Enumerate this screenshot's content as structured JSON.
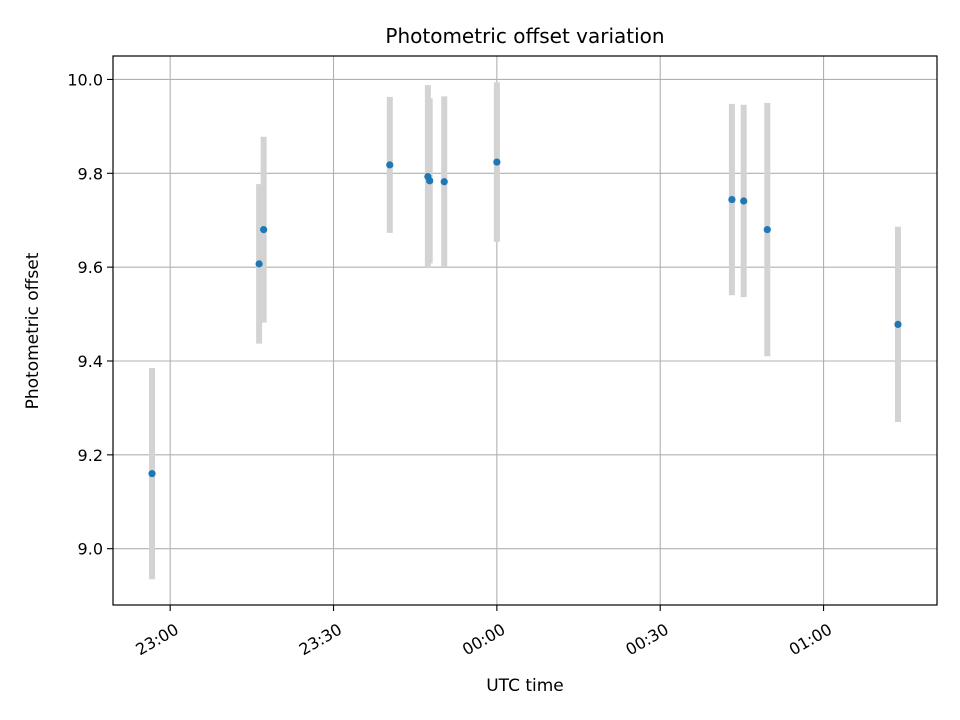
{
  "chart_data": {
    "type": "scatter",
    "title": "Photometric offset variation",
    "xlabel": "UTC time",
    "ylabel": "Photometric offset",
    "x_tick_labels": [
      "23:00",
      "23:30",
      "00:00",
      "00:30",
      "01:00"
    ],
    "x_tick_times": [
      "23:00",
      "23:30",
      "00:00",
      "00:30",
      "01:00"
    ],
    "y_tick_labels": [
      "9.0",
      "9.2",
      "9.4",
      "9.6",
      "9.8",
      "10.0"
    ],
    "xlim": [
      "22:49:30",
      "01:20:50"
    ],
    "ylim": [
      8.88,
      10.05
    ],
    "grid": true,
    "marker_color": "#1f77b4",
    "errorbar_color": "#d3d3d3",
    "points": [
      {
        "x": "22:56:40",
        "y": 9.16,
        "yerr": 0.225
      },
      {
        "x": "23:16:20",
        "y": 9.607,
        "yerr": 0.17
      },
      {
        "x": "23:17:10",
        "y": 9.68,
        "yerr": 0.198
      },
      {
        "x": "23:40:20",
        "y": 9.818,
        "yerr": 0.145
      },
      {
        "x": "23:47:20",
        "y": 9.793,
        "yerr": 0.195
      },
      {
        "x": "23:47:40",
        "y": 9.784,
        "yerr": 0.176
      },
      {
        "x": "23:50:20",
        "y": 9.782,
        "yerr": 0.182
      },
      {
        "x": "00:00:00",
        "y": 9.824,
        "yerr": 0.17
      },
      {
        "x": "00:43:10",
        "y": 9.744,
        "yerr": 0.204
      },
      {
        "x": "00:45:20",
        "y": 9.741,
        "yerr": 0.205
      },
      {
        "x": "00:49:40",
        "y": 9.68,
        "yerr": 0.27
      },
      {
        "x": "01:13:40",
        "y": 9.478,
        "yerr": 0.208
      }
    ]
  }
}
